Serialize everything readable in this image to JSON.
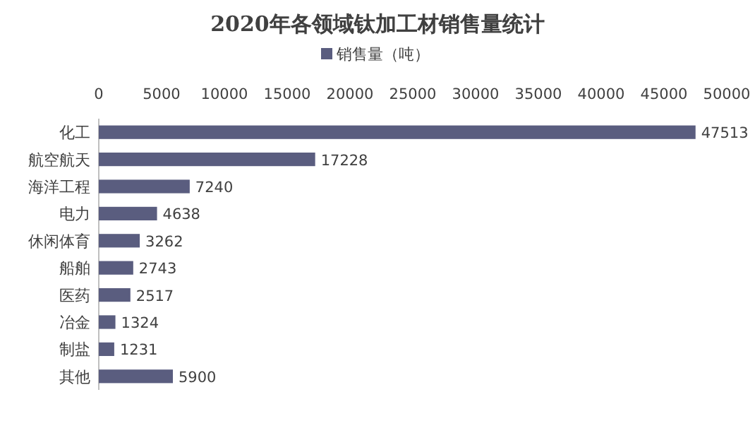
{
  "chart_data": {
    "type": "bar",
    "orientation": "horizontal",
    "title": "2020年各领域钛加工材销售量统计",
    "categories": [
      "化工",
      "航空航天",
      "海洋工程",
      "电力",
      "休闲体育",
      "船舶",
      "医药",
      "冶金",
      "制盐",
      "其他"
    ],
    "series": [
      {
        "name": "销售量（吨）",
        "color": "#5a5d7f",
        "values": [
          47513,
          17228,
          7240,
          4638,
          3262,
          2743,
          2517,
          1324,
          1231,
          5900
        ]
      }
    ],
    "xlim": [
      0,
      50000
    ],
    "xticks": [
      0,
      5000,
      10000,
      15000,
      20000,
      25000,
      30000,
      35000,
      40000,
      45000,
      50000
    ],
    "data_labels": true,
    "legend": "top"
  }
}
